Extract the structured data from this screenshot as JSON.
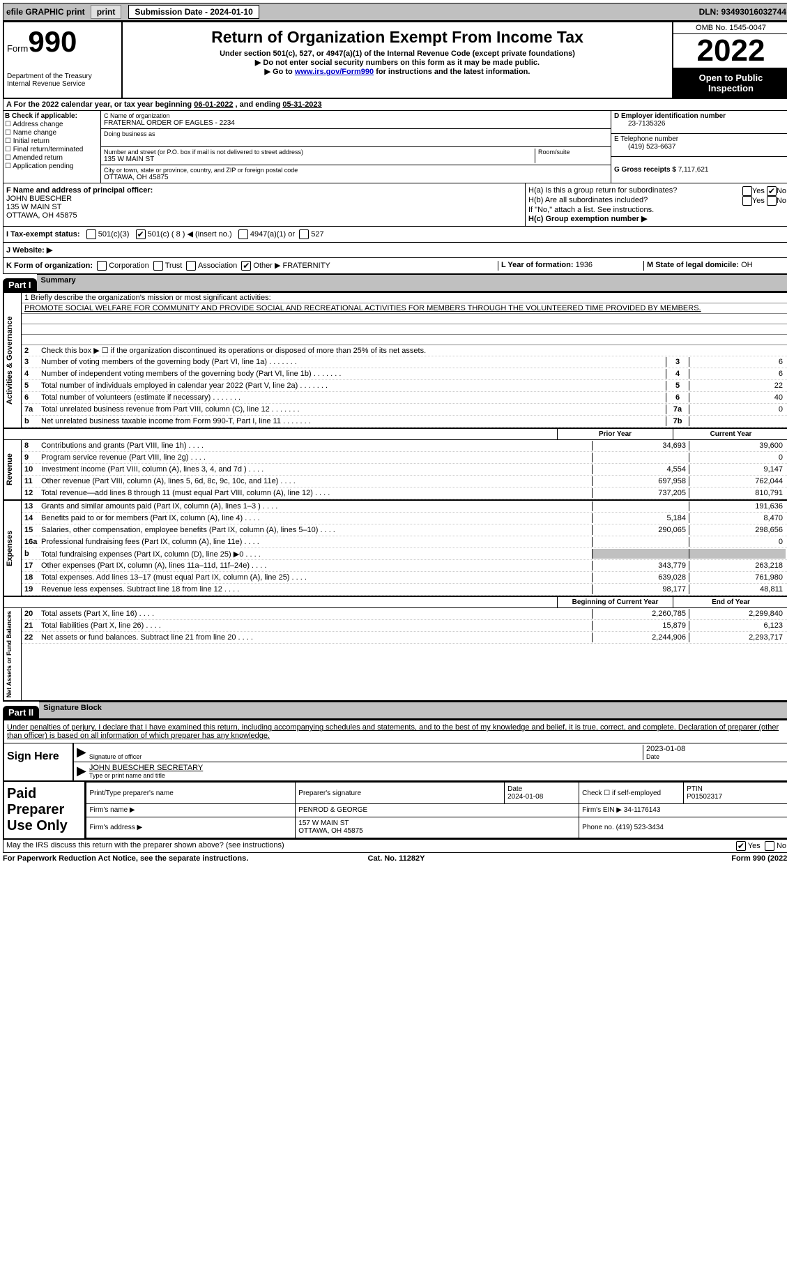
{
  "top": {
    "efile": "efile GRAPHIC print",
    "sub_label": "Submission Date - 2024-01-10",
    "dln": "DLN: 93493016032744"
  },
  "hdr": {
    "form_word": "Form",
    "form_num": "990",
    "title": "Return of Organization Exempt From Income Tax",
    "sub1": "Under section 501(c), 527, or 4947(a)(1) of the Internal Revenue Code (except private foundations)",
    "sub2": "▶ Do not enter social security numbers on this form as it may be made public.",
    "sub3a": "▶ Go to ",
    "sub3_link": "www.irs.gov/Form990",
    "sub3b": " for instructions and the latest information.",
    "dept": "Department of the Treasury\nInternal Revenue Service",
    "omb": "OMB No. 1545-0047",
    "year": "2022",
    "open": "Open to Public Inspection"
  },
  "A": {
    "pre": "A For the 2022 calendar year, or tax year beginning ",
    "begin": "06-01-2022",
    "mid": "  , and ending ",
    "end": "05-31-2023"
  },
  "B": {
    "hdr": "B Check if applicable:",
    "opts": [
      "Address change",
      "Name change",
      "Initial return",
      "Final return/terminated",
      "Amended return",
      "Application pending"
    ]
  },
  "C": {
    "name_lbl": "C Name of organization",
    "name": "FRATERNAL ORDER OF EAGLES - 2234",
    "dba_lbl": "Doing business as",
    "addr_lbl": "Number and street (or P.O. box if mail is not delivered to street address)",
    "room_lbl": "Room/suite",
    "addr": "135 W MAIN ST",
    "city_lbl": "City or town, state or province, country, and ZIP or foreign postal code",
    "city": "OTTAWA, OH  45875"
  },
  "D": {
    "ein_lbl": "D Employer identification number",
    "ein": "23-7135326",
    "tel_lbl": "E Telephone number",
    "tel": "(419) 523-6637",
    "gross_lbl": "G Gross receipts $",
    "gross": "7,117,621"
  },
  "F": {
    "lbl": "F Name and address of principal officer:",
    "name": "JOHN BUESCHER",
    "addr1": "135 W MAIN ST",
    "addr2": "OTTAWA, OH  45875"
  },
  "H": {
    "a": "H(a)  Is this a group return for subordinates?",
    "b": "H(b)  Are all subordinates included?",
    "b2": "If \"No,\" attach a list. See instructions.",
    "c": "H(c)  Group exemption number ▶",
    "yes": "Yes",
    "no": "No"
  },
  "I": {
    "lbl": "I  Tax-exempt status:",
    "o1": "501(c)(3)",
    "o2a": "501(c) ( ",
    "o2b": "8",
    "o2c": " ) ◀ (insert no.)",
    "o3": "4947(a)(1) or",
    "o4": "527"
  },
  "J": {
    "lbl": "J  Website: ▶"
  },
  "K": {
    "lbl": "K Form of organization:",
    "opts": [
      "Corporation",
      "Trust",
      "Association",
      "Other ▶"
    ],
    "other": "FRATERNITY",
    "L_lbl": "L Year of formation:",
    "L_val": "1936",
    "M_lbl": "M State of legal domicile:",
    "M_val": "OH"
  },
  "parts": {
    "p1": "Part I",
    "p1t": "Summary",
    "p2": "Part II",
    "p2t": "Signature Block"
  },
  "mission": {
    "lbl": "1   Briefly describe the organization's mission or most significant activities:",
    "txt": "PROMOTE SOCIAL WELFARE FOR COMMUNITY AND PROVIDE SOCIAL AND RECREATIONAL ACTIVITIES FOR MEMBERS THROUGH THE VOLUNTEERED TIME PROVIDED BY MEMBERS."
  },
  "gov": {
    "l2": "Check this box ▶ ☐  if the organization discontinued its operations or disposed of more than 25% of its net assets.",
    "lines": [
      {
        "n": "3",
        "d": "Number of voting members of the governing body (Part VI, line 1a)",
        "box": "3",
        "v": "6"
      },
      {
        "n": "4",
        "d": "Number of independent voting members of the governing body (Part VI, line 1b)",
        "box": "4",
        "v": "6"
      },
      {
        "n": "5",
        "d": "Total number of individuals employed in calendar year 2022 (Part V, line 2a)",
        "box": "5",
        "v": "22"
      },
      {
        "n": "6",
        "d": "Total number of volunteers (estimate if necessary)",
        "box": "6",
        "v": "40"
      },
      {
        "n": "7a",
        "d": "Total unrelated business revenue from Part VIII, column (C), line 12",
        "box": "7a",
        "v": "0"
      },
      {
        "n": "b",
        "d": "Net unrelated business taxable income from Form 990-T, Part I, line 11",
        "box": "7b",
        "v": ""
      }
    ]
  },
  "colhdrs": {
    "prior": "Prior Year",
    "curr": "Current Year",
    "beg": "Beginning of Current Year",
    "end": "End of Year"
  },
  "rev": [
    {
      "n": "8",
      "d": "Contributions and grants (Part VIII, line 1h)",
      "p": "34,693",
      "c": "39,600"
    },
    {
      "n": "9",
      "d": "Program service revenue (Part VIII, line 2g)",
      "p": "",
      "c": "0"
    },
    {
      "n": "10",
      "d": "Investment income (Part VIII, column (A), lines 3, 4, and 7d )",
      "p": "4,554",
      "c": "9,147"
    },
    {
      "n": "11",
      "d": "Other revenue (Part VIII, column (A), lines 5, 6d, 8c, 9c, 10c, and 11e)",
      "p": "697,958",
      "c": "762,044"
    },
    {
      "n": "12",
      "d": "Total revenue—add lines 8 through 11 (must equal Part VIII, column (A), line 12)",
      "p": "737,205",
      "c": "810,791"
    }
  ],
  "exp": [
    {
      "n": "13",
      "d": "Grants and similar amounts paid (Part IX, column (A), lines 1–3 )",
      "p": "",
      "c": "191,636"
    },
    {
      "n": "14",
      "d": "Benefits paid to or for members (Part IX, column (A), line 4)",
      "p": "5,184",
      "c": "8,470"
    },
    {
      "n": "15",
      "d": "Salaries, other compensation, employee benefits (Part IX, column (A), lines 5–10)",
      "p": "290,065",
      "c": "298,656"
    },
    {
      "n": "16a",
      "d": "Professional fundraising fees (Part IX, column (A), line 11e)",
      "p": "",
      "c": "0"
    },
    {
      "n": "b",
      "d": "Total fundraising expenses (Part IX, column (D), line 25) ▶0",
      "p": "SHADE",
      "c": "SHADE"
    },
    {
      "n": "17",
      "d": "Other expenses (Part IX, column (A), lines 11a–11d, 11f–24e)",
      "p": "343,779",
      "c": "263,218"
    },
    {
      "n": "18",
      "d": "Total expenses. Add lines 13–17 (must equal Part IX, column (A), line 25)",
      "p": "639,028",
      "c": "761,980"
    },
    {
      "n": "19",
      "d": "Revenue less expenses. Subtract line 18 from line 12",
      "p": "98,177",
      "c": "48,811"
    }
  ],
  "net": [
    {
      "n": "20",
      "d": "Total assets (Part X, line 16)",
      "p": "2,260,785",
      "c": "2,299,840"
    },
    {
      "n": "21",
      "d": "Total liabilities (Part X, line 26)",
      "p": "15,879",
      "c": "6,123"
    },
    {
      "n": "22",
      "d": "Net assets or fund balances. Subtract line 21 from line 20",
      "p": "2,244,906",
      "c": "2,293,717"
    }
  ],
  "vlabels": {
    "gov": "Activities & Governance",
    "rev": "Revenue",
    "exp": "Expenses",
    "net": "Net Assets or Fund Balances"
  },
  "sig": {
    "decl": "Under penalties of perjury, I declare that I have examined this return, including accompanying schedules and statements, and to the best of my knowledge and belief, it is true, correct, and complete. Declaration of preparer (other than officer) is based on all information of which preparer has any knowledge.",
    "sign_here": "Sign Here",
    "sig_off": "Signature of officer",
    "date": "Date",
    "date_v": "2023-01-08",
    "name": "JOHN BUESCHER  SECRETARY",
    "name_lbl": "Type or print name and title"
  },
  "prep": {
    "lbl": "Paid Preparer Use Only",
    "r1": {
      "a": "Print/Type preparer's name",
      "b": "Preparer's signature",
      "c": "Date\n2024-01-08",
      "d": "Check ☐ if self-employed",
      "e": "PTIN\nP01502317"
    },
    "r2": {
      "a": "Firm's name      ▶",
      "b": "PENROD & GEORGE",
      "c": "Firm's EIN ▶",
      "d": "34-1176143"
    },
    "r3": {
      "a": "Firm's address ▶",
      "b": "157 W MAIN ST\nOTTAWA, OH  45875",
      "c": "Phone no.",
      "d": "(419) 523-3434"
    }
  },
  "discuss": {
    "q": "May the IRS discuss this return with the preparer shown above? (see instructions)",
    "yes": "Yes",
    "no": "No"
  },
  "foot": {
    "l": "For Paperwork Reduction Act Notice, see the separate instructions.",
    "m": "Cat. No. 11282Y",
    "r": "Form 990 (2022)"
  }
}
